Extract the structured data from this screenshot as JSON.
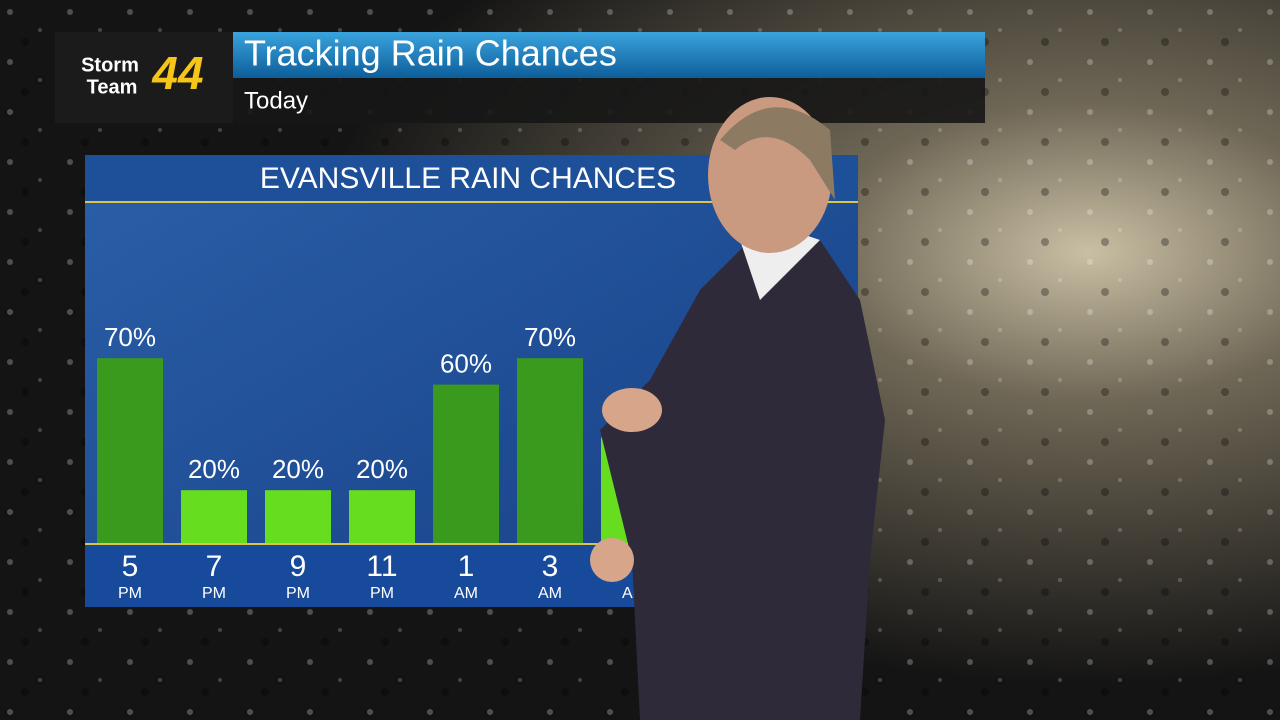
{
  "header": {
    "logo": {
      "word1": "Storm",
      "word2": "Team",
      "number": "44"
    },
    "title": "Tracking Rain Chances",
    "subtitle": "Today"
  },
  "chart_data": {
    "type": "bar",
    "title": "EVANSVILLE RAIN CHANCES",
    "categories": [
      "5",
      "7",
      "9",
      "11",
      "1",
      "3",
      null
    ],
    "periods": [
      "PM",
      "PM",
      "PM",
      "PM",
      "AM",
      "AM",
      "AM"
    ],
    "values": [
      70,
      20,
      20,
      20,
      60,
      70,
      40
    ],
    "value_labels": [
      "70%",
      "20%",
      "20%",
      "20%",
      "60%",
      "70%",
      null
    ],
    "colors": [
      "#3a9a1e",
      "#66dd1e",
      "#66dd1e",
      "#66dd1e",
      "#3a9a1e",
      "#3a9a1e",
      "#66dd1e"
    ]
  }
}
